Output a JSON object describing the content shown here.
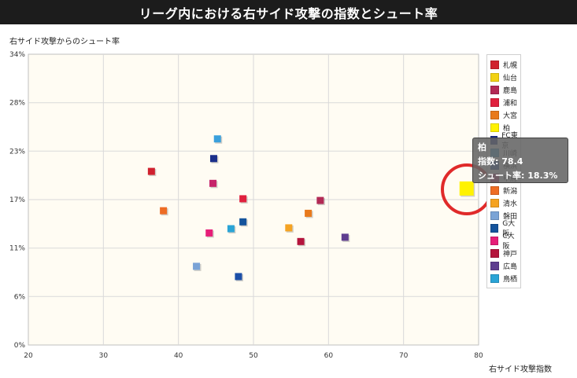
{
  "title": "リーグ内における右サイド攻撃の指数とシュート率",
  "chart_data": {
    "type": "scatter",
    "xlabel": "右サイド攻撃指数",
    "ylabel": "右サイド攻撃からのシュート率",
    "xlim": [
      20,
      80
    ],
    "ylim": [
      0,
      34
    ],
    "x_ticks": [
      "20",
      "30",
      "40",
      "50",
      "60",
      "70",
      "80"
    ],
    "y_ticks": [
      "0%",
      "6%",
      "11%",
      "17%",
      "23%",
      "28%",
      "34%"
    ],
    "y_tick_values": [
      0,
      5.67,
      11.33,
      17,
      22.67,
      28.33,
      34
    ],
    "grid": true,
    "legend_position": "right",
    "series": [
      {
        "name": "札幌",
        "color": "#d0212e",
        "x": 36.4,
        "y": 20.3
      },
      {
        "name": "仙台",
        "color": "#f2d214",
        "x": 78.4,
        "y": 18.3
      },
      {
        "name": "鹿島",
        "color": "#b22a55",
        "x": 58.9,
        "y": 16.9
      },
      {
        "name": "浦和",
        "color": "#e0203d",
        "x": 48.6,
        "y": 17.1
      },
      {
        "name": "大宮",
        "color": "#e87a1c",
        "x": 57.3,
        "y": 15.4
      },
      {
        "name": "柏",
        "color": "#fff200",
        "x": 78.4,
        "y": 18.3
      },
      {
        "name": "FC東京",
        "color": "#1a2f8a",
        "x": 44.7,
        "y": 21.8
      },
      {
        "name": "川崎",
        "color": "#3aa0dc",
        "x": 45.2,
        "y": 24.1
      },
      {
        "name": "横浜",
        "color": "#1c4fa8",
        "x": 48.0,
        "y": 8.0
      },
      {
        "name": "甲府",
        "color": "#c6246a",
        "x": 44.6,
        "y": 18.9
      },
      {
        "name": "新潟",
        "color": "#ee6c24",
        "x": 38.0,
        "y": 15.7
      },
      {
        "name": "清水",
        "color": "#f5a322",
        "x": 54.7,
        "y": 13.7
      },
      {
        "name": "磐田",
        "color": "#7aa3d6",
        "x": 42.4,
        "y": 9.2
      },
      {
        "name": "G大阪",
        "color": "#14539c",
        "x": 48.6,
        "y": 14.4
      },
      {
        "name": "C大阪",
        "color": "#e61e78",
        "x": 44.1,
        "y": 13.1
      },
      {
        "name": "神戸",
        "color": "#b4143c",
        "x": 56.3,
        "y": 12.1
      },
      {
        "name": "広島",
        "color": "#5e3d8f",
        "x": 62.2,
        "y": 12.6
      },
      {
        "name": "鳥栖",
        "color": "#2aa4d6",
        "x": 47.0,
        "y": 13.6
      }
    ]
  },
  "tooltip": {
    "team": "柏",
    "index_label": "指数: 78.4",
    "rate_label": "シュート率: 18.3%"
  },
  "highlight_color": "#e02a2a",
  "plot_background": "#fffcf3"
}
